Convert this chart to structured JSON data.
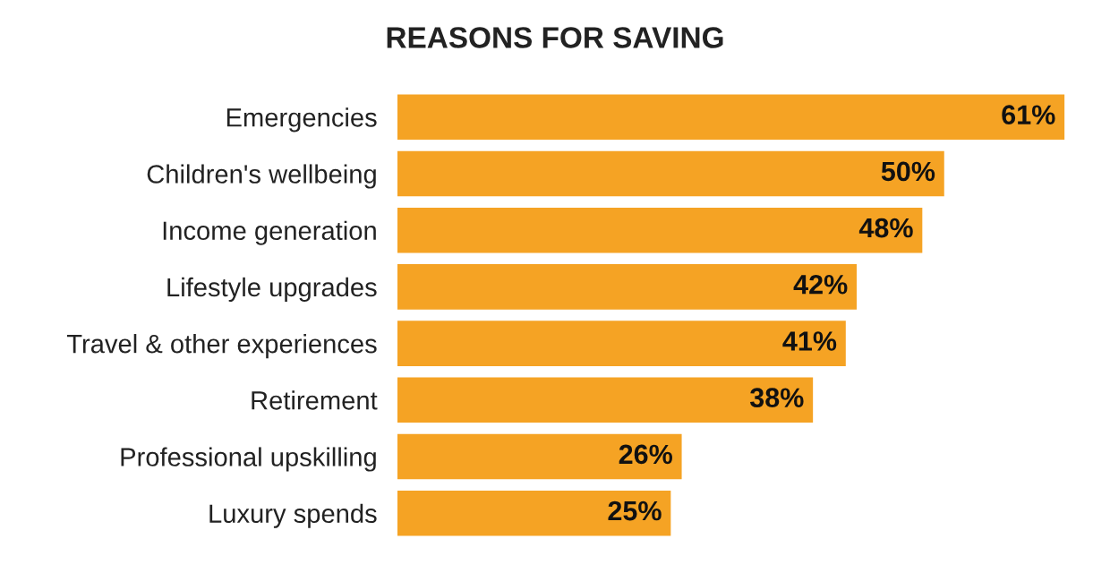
{
  "chart_data": {
    "type": "bar",
    "orientation": "horizontal",
    "title": "REASONS FOR SAVING",
    "categories": [
      "Emergencies",
      "Children's wellbeing",
      "Income generation",
      "Lifestyle upgrades",
      "Travel & other experiences",
      "Retirement",
      "Professional upskilling",
      "Luxury spends"
    ],
    "values": [
      61,
      50,
      48,
      42,
      41,
      38,
      26,
      25
    ],
    "value_labels": [
      "61%",
      "50%",
      "48%",
      "42%",
      "41%",
      "38%",
      "26%",
      "25%"
    ],
    "color": "#f5a324",
    "grid": false,
    "legend": false
  }
}
